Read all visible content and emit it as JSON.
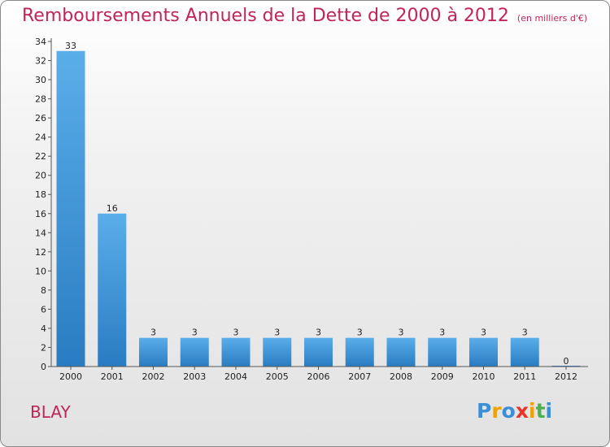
{
  "title": "Remboursements Annuels de la Dette de 2000 à 2012",
  "unit_label": "(en milliers d'€)",
  "commune": "BLAY",
  "logo": {
    "text": "Proxiti",
    "colors": [
      "#3a8fd6",
      "#f2a100",
      "#e8352b",
      "#4caf50"
    ]
  },
  "colors": {
    "title": "#c0245a",
    "bar_light": "#5aaee9",
    "bar_dark": "#2a7cc2"
  },
  "chart_data": {
    "type": "bar",
    "title": "Remboursements Annuels de la Dette de 2000 à 2012",
    "xlabel": "",
    "ylabel": "",
    "categories": [
      "2000",
      "2001",
      "2002",
      "2003",
      "2004",
      "2005",
      "2006",
      "2007",
      "2008",
      "2009",
      "2010",
      "2011",
      "2012"
    ],
    "values": [
      33,
      16,
      3,
      3,
      3,
      3,
      3,
      3,
      3,
      3,
      3,
      3,
      0
    ],
    "value_labels": [
      "33",
      "16",
      "3",
      "3",
      "3",
      "3",
      "3",
      "3",
      "3",
      "3",
      "3",
      "3",
      "0"
    ],
    "ylim": [
      0,
      34
    ],
    "yticks": [
      0,
      2,
      4,
      6,
      8,
      10,
      12,
      14,
      16,
      18,
      20,
      22,
      24,
      26,
      28,
      30,
      32,
      34
    ],
    "grid": false
  }
}
